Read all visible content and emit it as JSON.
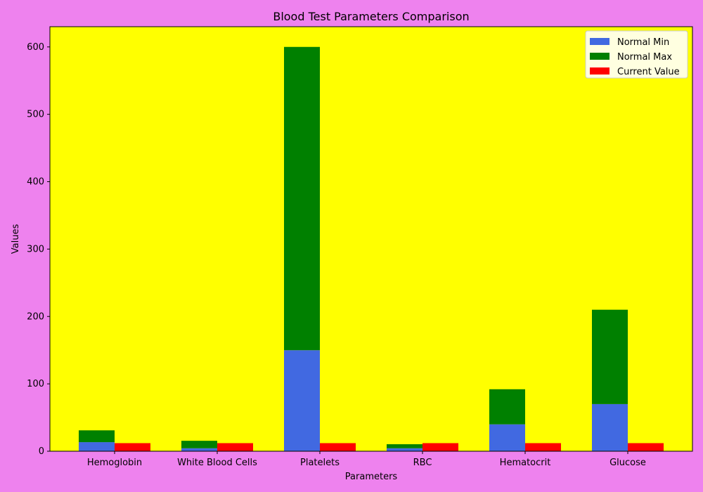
{
  "chart_data": {
    "type": "bar",
    "title": "Blood Test Parameters Comparison",
    "xlabel": "Parameters",
    "ylabel": "Values",
    "categories": [
      "Hemoglobin",
      "White Blood Cells",
      "Platelets",
      "RBC",
      "Hematocrit",
      "Glucose"
    ],
    "series": [
      {
        "name": "Normal Min",
        "values": [
          13.5,
          4.5,
          150,
          4.5,
          40,
          70
        ],
        "color": "#4169E1",
        "stack": "range"
      },
      {
        "name": "Normal Max",
        "values": [
          17.5,
          11,
          450,
          5.9,
          52,
          140
        ],
        "color": "#008000",
        "stack": "range"
      },
      {
        "name": "Current Value",
        "values": [
          12,
          12,
          12,
          12,
          12,
          12
        ],
        "color": "#FF0000",
        "stack": "current"
      }
    ],
    "ylim": [
      0,
      630
    ],
    "yticks": [
      0,
      100,
      200,
      300,
      400,
      500,
      600
    ],
    "legend_position": "top-right",
    "grid": false,
    "colors": {
      "figure_background": "#EE82EE",
      "plot_background": "#FFFF00",
      "legend_background": "#FFFFE0"
    }
  }
}
